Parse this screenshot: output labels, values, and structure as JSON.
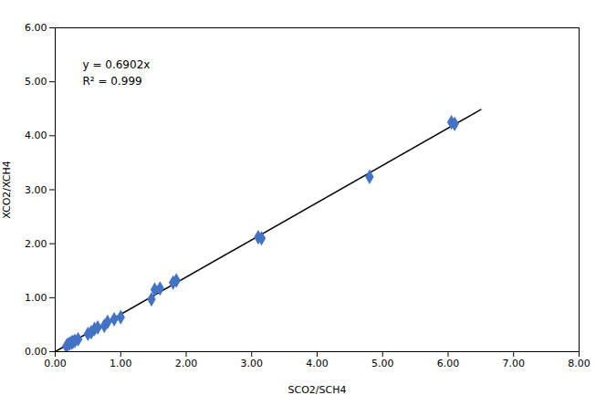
{
  "chart_data": {
    "type": "scatter",
    "xlabel": "SCO2/SCH4",
    "ylabel": "XCO2/XCH4",
    "xlim": [
      0.0,
      8.0
    ],
    "ylim": [
      0.0,
      6.0
    ],
    "xticks": [
      {
        "value": 0.0,
        "label": "0.00"
      },
      {
        "value": 1.0,
        "label": "1.00"
      },
      {
        "value": 2.0,
        "label": "2.00"
      },
      {
        "value": 3.0,
        "label": "3.00"
      },
      {
        "value": 4.0,
        "label": "4.00"
      },
      {
        "value": 5.0,
        "label": "5.00"
      },
      {
        "value": 6.0,
        "label": "6.00"
      },
      {
        "value": 7.0,
        "label": "7.00"
      },
      {
        "value": 8.0,
        "label": "8.00"
      }
    ],
    "yticks": [
      {
        "value": 0.0,
        "label": "0.00"
      },
      {
        "value": 1.0,
        "label": "1.00"
      },
      {
        "value": 2.0,
        "label": "2.00"
      },
      {
        "value": 3.0,
        "label": "3.00"
      },
      {
        "value": 4.0,
        "label": "4.00"
      },
      {
        "value": 5.0,
        "label": "5.00"
      },
      {
        "value": 6.0,
        "label": "6.00"
      }
    ],
    "grid": false,
    "series": [
      {
        "type": "scatter",
        "marker": "diamond",
        "color": "#4472C4",
        "x": [
          0.17,
          0.19,
          0.22,
          0.25,
          0.27,
          0.3,
          0.35,
          0.5,
          0.55,
          0.6,
          0.65,
          0.75,
          0.8,
          0.9,
          1.0,
          1.47,
          1.52,
          1.6,
          1.8,
          1.85,
          3.1,
          3.15,
          4.8,
          6.05,
          6.1
        ],
        "values": [
          0.1,
          0.13,
          0.15,
          0.17,
          0.18,
          0.2,
          0.23,
          0.33,
          0.36,
          0.42,
          0.45,
          0.48,
          0.55,
          0.6,
          0.64,
          0.97,
          1.15,
          1.17,
          1.28,
          1.32,
          2.12,
          2.1,
          3.24,
          4.25,
          4.22
        ]
      },
      {
        "type": "line",
        "color": "#000000",
        "x": [
          0.0,
          6.5
        ],
        "values": [
          0.0,
          4.4863
        ]
      }
    ],
    "annotations": [
      "y = 0.6902x",
      "R² = 0.999"
    ]
  }
}
